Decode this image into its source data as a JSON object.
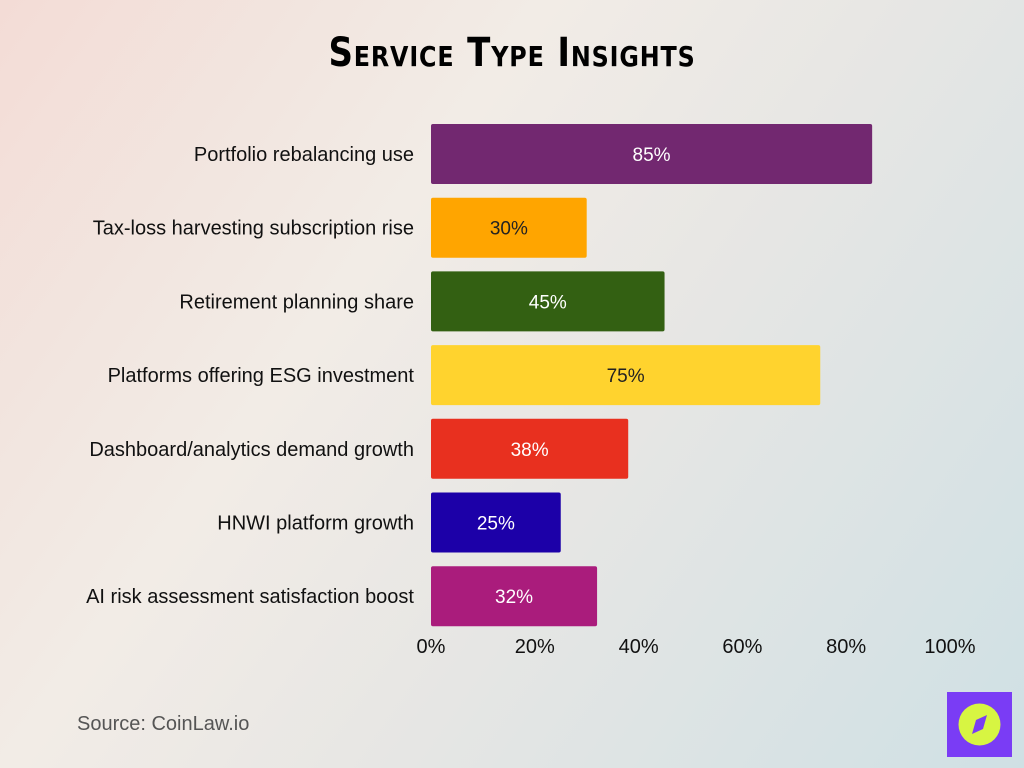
{
  "chart_data": {
    "type": "bar",
    "orientation": "horizontal",
    "title": "Service Type Insights",
    "categories": [
      "Portfolio rebalancing use",
      "Tax-loss harvesting subscription rise",
      "Retirement planning share",
      "Platforms offering ESG investment",
      "Dashboard/analytics demand growth",
      "HNWI platform growth",
      "AI risk assessment satisfaction boost"
    ],
    "values": [
      85,
      30,
      45,
      75,
      38,
      25,
      32
    ],
    "data_labels": [
      "85%",
      "30%",
      "45%",
      "75%",
      "38%",
      "25%",
      "32%"
    ],
    "colors": [
      "#722870",
      "#FFA500",
      "#336012",
      "#FFD32E",
      "#E8301F",
      "#1C00A8",
      "#AA1C7C"
    ],
    "label_colors": [
      "#ffffff",
      "#222222",
      "#ffffff",
      "#222222",
      "#ffffff",
      "#ffffff",
      "#ffffff"
    ],
    "xlim": [
      0,
      100
    ],
    "xticks": [
      "0%",
      "20%",
      "40%",
      "60%",
      "80%",
      "100%"
    ],
    "grid": false,
    "legend": "none"
  },
  "source": "Source: CoinLaw.io",
  "logo_icon": "compass-icon"
}
